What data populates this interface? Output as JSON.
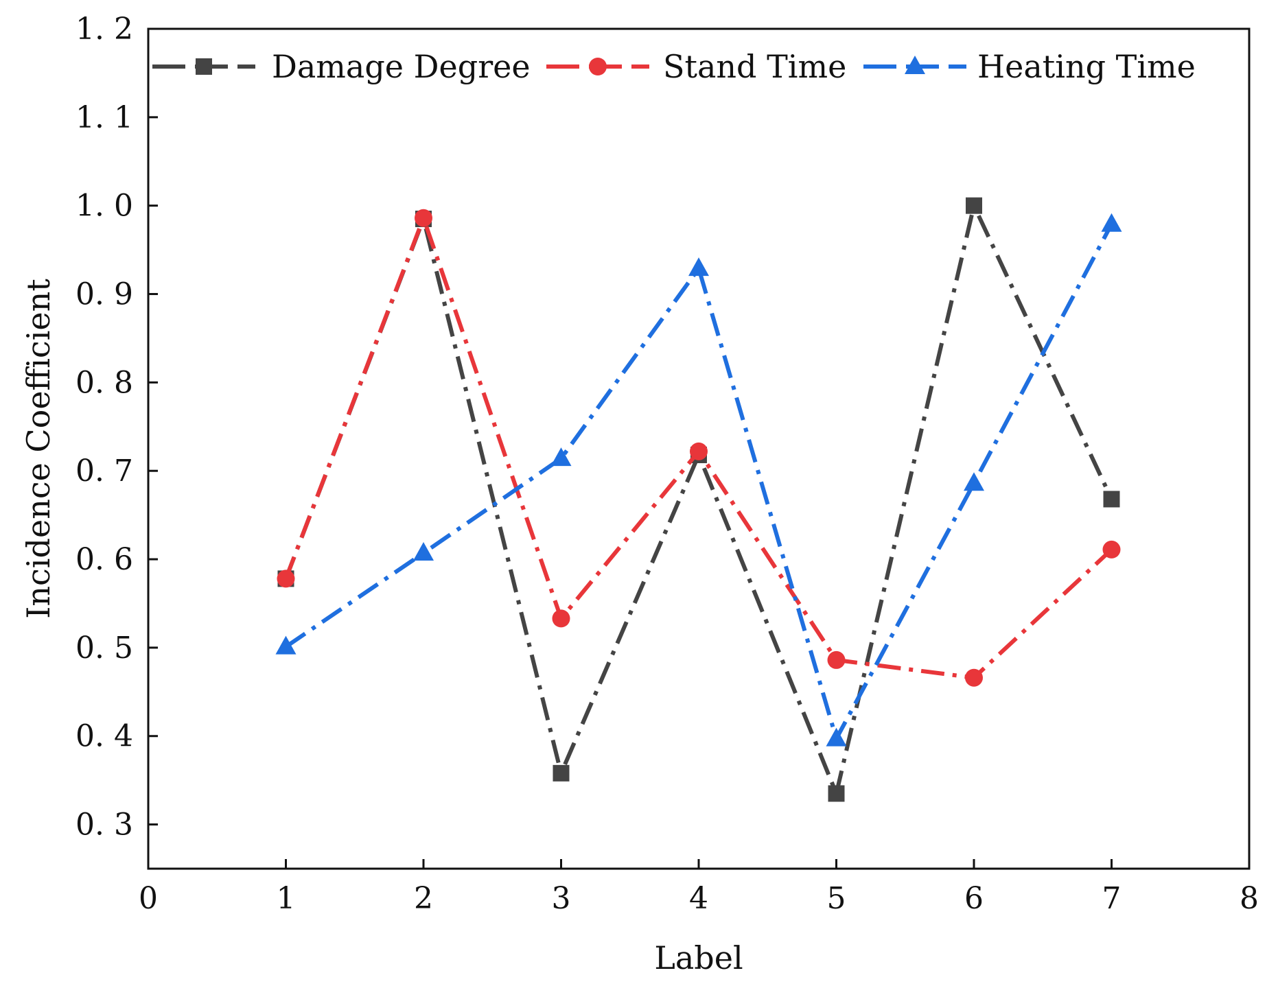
{
  "chart_data": {
    "type": "line",
    "title": "",
    "xlabel": "Label",
    "ylabel": "Incidence Coefficient",
    "xlim": [
      0,
      8
    ],
    "ylim": [
      0.25,
      1.2
    ],
    "xticks": [
      0,
      1,
      2,
      3,
      4,
      5,
      6,
      7,
      8
    ],
    "xtick_labels": [
      "0",
      "1",
      "2",
      "3",
      "4",
      "5",
      "6",
      "7",
      "8"
    ],
    "yticks": [
      0.3,
      0.4,
      0.5,
      0.6,
      0.7,
      0.8,
      0.9,
      1.0,
      1.1,
      1.2
    ],
    "ytick_labels": [
      "0. 3",
      "0. 4",
      "0. 5",
      "0. 6",
      "0. 7",
      "0. 8",
      "0. 9",
      "1. 0",
      "1. 1",
      "1. 2"
    ],
    "grid": false,
    "legend_position": "top",
    "x": [
      1,
      2,
      3,
      4,
      5,
      6,
      7
    ],
    "series": [
      {
        "name": "Damage Degree",
        "color": "#444444",
        "marker": "square",
        "values": [
          0.578,
          0.985,
          0.358,
          0.718,
          0.335,
          1.0,
          0.668
        ]
      },
      {
        "name": "Stand Time",
        "color": "#e8363a",
        "marker": "circle",
        "values": [
          0.578,
          0.986,
          0.533,
          0.722,
          0.486,
          0.466,
          0.611
        ]
      },
      {
        "name": "Heating Time",
        "color": "#1f6fdf",
        "marker": "triangle",
        "values": [
          0.501,
          0.607,
          0.714,
          0.929,
          0.397,
          0.686,
          0.979
        ]
      }
    ]
  }
}
